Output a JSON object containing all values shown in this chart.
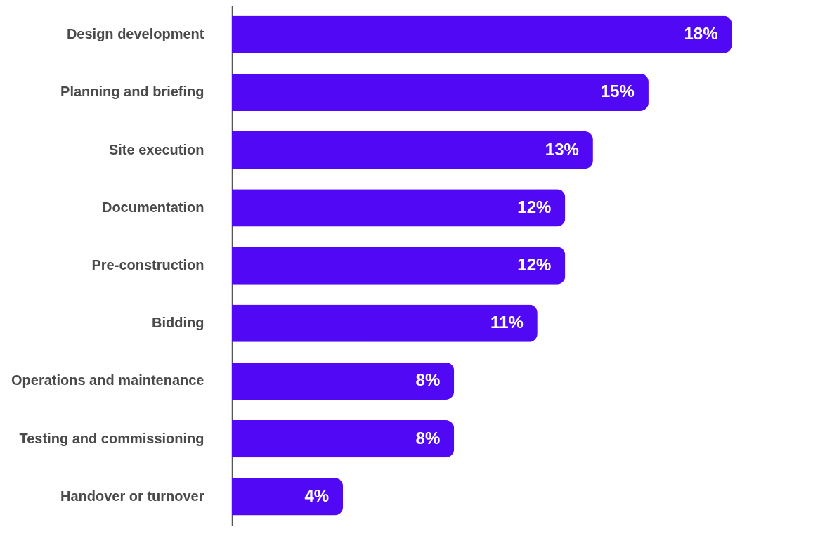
{
  "chart_data": {
    "type": "bar",
    "orientation": "horizontal",
    "categories": [
      "Design development",
      "Planning and briefing",
      "Site execution",
      "Documentation",
      "Pre-construction",
      "Bidding",
      "Operations and maintenance",
      "Testing and commissioning",
      "Handover or turnover"
    ],
    "values": [
      18,
      15,
      13,
      12,
      12,
      11,
      8,
      8,
      4
    ],
    "value_labels": [
      "18%",
      "15%",
      "13%",
      "12%",
      "12%",
      "11%",
      "8%",
      "8%",
      "4%"
    ],
    "color": "#5109f5",
    "grid": false
  }
}
